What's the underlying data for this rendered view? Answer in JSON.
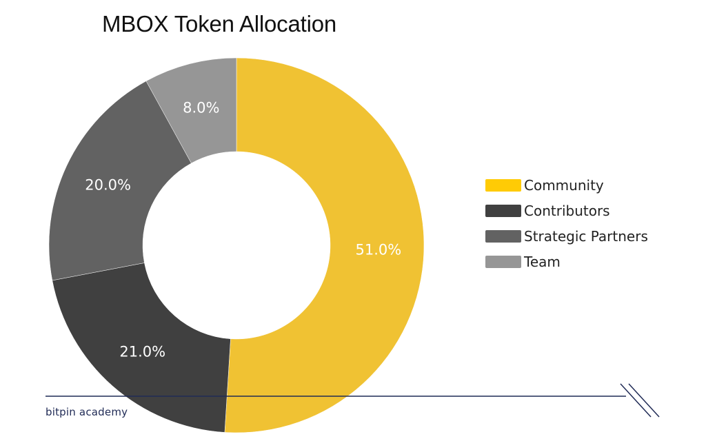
{
  "chart_data": {
    "type": "pie",
    "title": "MBOX Token Allocation",
    "donut": true,
    "legend_position": "right",
    "slices": [
      {
        "label": "Community",
        "value": 51.0,
        "display": "51.0%",
        "color": "#F0C233",
        "legend_color": "#FFCB05"
      },
      {
        "label": "Contributors",
        "value": 21.0,
        "display": "21.0%",
        "color": "#404040",
        "legend_color": "#404040"
      },
      {
        "label": "Strategic Partners",
        "value": 20.0,
        "display": "20.0%",
        "color": "#626262",
        "legend_color": "#626262"
      },
      {
        "label": "Team",
        "value": 8.0,
        "display": "8.0%",
        "color": "#969696",
        "legend_color": "#969696"
      }
    ]
  },
  "watermark": {
    "text": "bitpin academy",
    "color": "#1F2A55"
  }
}
